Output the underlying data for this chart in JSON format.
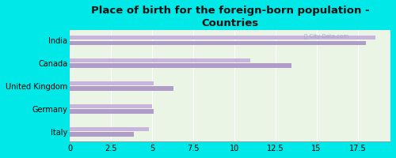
{
  "title": "Place of birth for the foreign-born population -\nCountries",
  "categories": [
    "India",
    "Canada",
    "United Kingdom",
    "Germany",
    "Italy"
  ],
  "values1": [
    18.0,
    13.5,
    6.3,
    5.1,
    3.9
  ],
  "values2": [
    18.6,
    11.0,
    5.1,
    5.0,
    4.8
  ],
  "bar_color1": "#b09cc8",
  "bar_color2": "#c8b4dc",
  "background_chart": "#eaf5e6",
  "background_outer": "#00e8e8",
  "xlim": [
    0,
    19.5
  ],
  "xticks": [
    0,
    2.5,
    5,
    7.5,
    10,
    12.5,
    15,
    17.5
  ],
  "bar_height": 0.18,
  "bar_gap": 0.05,
  "title_fontsize": 9.5,
  "tick_fontsize": 7,
  "label_fontsize": 7
}
